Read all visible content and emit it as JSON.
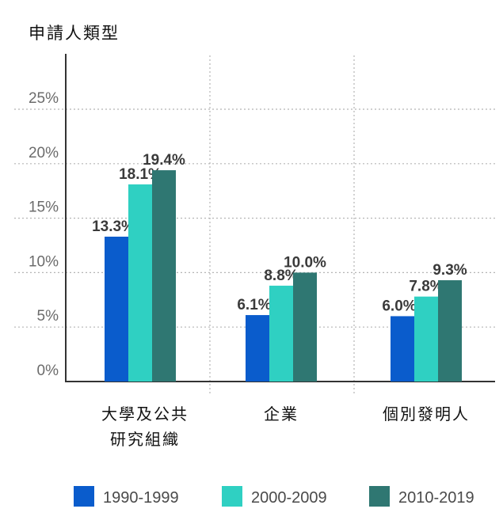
{
  "chart_data": {
    "type": "bar",
    "title": "申請人類型",
    "categories": [
      [
        "大學及公共",
        "研究組織"
      ],
      [
        "企業"
      ],
      [
        "個別發明人"
      ]
    ],
    "series": [
      {
        "name": "1990-1999",
        "color": "#0a5ccc",
        "values": [
          13.3,
          6.1,
          6.0
        ],
        "labels": [
          "13.3%",
          "6.1%",
          "6.0%"
        ]
      },
      {
        "name": "2000-2009",
        "color": "#2fd0c2",
        "values": [
          18.1,
          8.8,
          7.8
        ],
        "labels": [
          "18.1%",
          "8.8%",
          "7.8%"
        ]
      },
      {
        "name": "2010-2019",
        "color": "#2f7772",
        "values": [
          19.4,
          10.0,
          9.3
        ],
        "labels": [
          "19.4%",
          "10.0%",
          "9.3%"
        ]
      }
    ],
    "ylim": [
      0,
      25
    ],
    "yticks": [
      "0%",
      "5%",
      "10%",
      "15%",
      "20%",
      "25%"
    ],
    "grid": true,
    "legend": "bottom"
  }
}
